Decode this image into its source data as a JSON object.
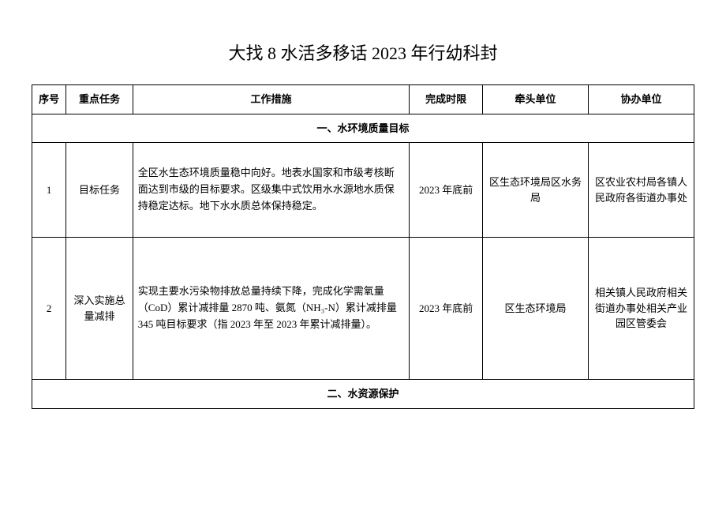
{
  "title": "大找 8 水活多移话 2023 年行幼科封",
  "headers": {
    "seq": "序号",
    "task": "重点任务",
    "measure": "工作措施",
    "deadline": "完成时限",
    "lead": "牵头单位",
    "assist": "协办单位"
  },
  "section1": "一、水环境质量目标",
  "section2": "二、水资源保护",
  "rows": [
    {
      "seq": "1",
      "task": "目标任务",
      "measure": "全区水生态环境质量稳中向好。地表水国家和市级考核断面达到市级的目标要求。区级集中式饮用水水源地水质保持稳定达标。地下水水质总体保持稳定。",
      "deadline": "2023 年底前",
      "lead": "区生态环境局区水务局",
      "assist": "区农业农村局各镇人民政府各街道办事处"
    },
    {
      "seq": "2",
      "task": "深入实施总量减排",
      "measure": "实现主要水污染物排放总量持续下降，完成化学需氧量（CoD）累计减排量 2870 吨、氨氮（NH₃-N）累计减排量 345 吨目标要求（指 2023 年至 2023 年累计减排量）。",
      "deadline": "2023 年底前",
      "lead": "区生态环境局",
      "assist": "相关镇人民政府相关街道办事处相关产业园区管委会"
    }
  ]
}
